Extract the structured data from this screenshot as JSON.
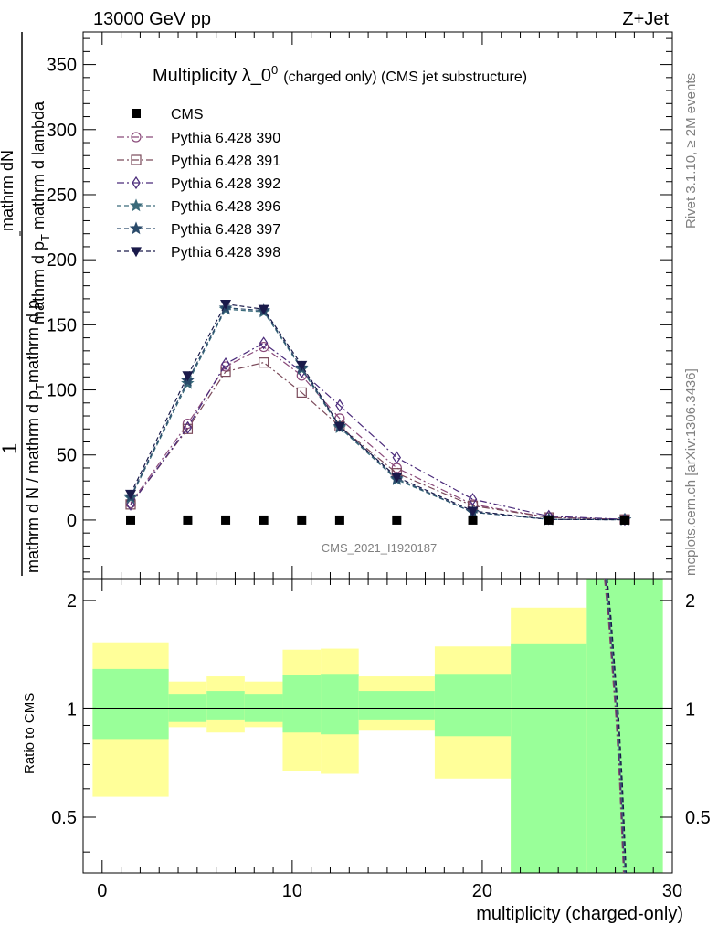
{
  "header": {
    "left": "13000 GeV pp",
    "right": "Z+Jet"
  },
  "side_labels": {
    "rivet": "Rivet 3.1.10, ≥ 2M events",
    "mcplots": "mcplots.cern.ch [arXiv:1306.3436]"
  },
  "watermark": "CMS_2021_I1920187",
  "colors": {
    "yellow_band": "#ffff99",
    "green_band": "#99ff99",
    "frame": "#000000"
  },
  "chart_data": [
    {
      "type": "line",
      "title_main": "Multiplicity λ_0",
      "title_sup": "0",
      "title_small": "(charged only) (CMS jet substructure)",
      "ylabel_parts": {
        "one": "1",
        "num_top": "mathrm dN",
        "num_mid": "mathrm d p",
        "num_sub": "T",
        "num_tail": " mathrm d lambda",
        "den_a": "mathrm d N / mathrm d p",
        "den_sub": "T",
        "den_b": "mathrm d p"
      },
      "xlim": [
        -1,
        30
      ],
      "ylim": [
        -45,
        375
      ],
      "yticks": [
        0,
        50,
        100,
        150,
        200,
        250,
        300,
        350
      ],
      "legend_position": "top-left",
      "data_series": {
        "name": "CMS",
        "x": [
          1.5,
          4.5,
          6.5,
          8.5,
          10.5,
          12.5,
          15.5,
          19.5,
          23.5,
          27.5
        ],
        "y": [
          0,
          0,
          0,
          0,
          0,
          0,
          0,
          0,
          0,
          0
        ]
      },
      "x": [
        1.5,
        4.5,
        6.5,
        8.5,
        10.5,
        12.5,
        15.5,
        19.5,
        23.5,
        27.5
      ],
      "series": [
        {
          "name": "Pythia 6.428 390",
          "marker": "circle",
          "dash": "8,3,2,3",
          "color": "#8a4a7a",
          "values": [
            13,
            74,
            118,
            133,
            111,
            78,
            40,
            12,
            2,
            0.5
          ]
        },
        {
          "name": "Pythia 6.428 391",
          "marker": "square",
          "dash": "8,3,2,3",
          "color": "#7a4a5a",
          "values": [
            12,
            70,
            114,
            121,
            98,
            72,
            36,
            11,
            2,
            0.5
          ]
        },
        {
          "name": "Pythia 6.428 392",
          "marker": "diamond",
          "dash": "8,3,2,3",
          "color": "#4a2a7a",
          "values": [
            12,
            71,
            120,
            136,
            114,
            88,
            48,
            16,
            3,
            0.5
          ]
        },
        {
          "name": "Pythia 6.428 396",
          "marker": "star",
          "dash": "5,3",
          "color": "#3a6a7a",
          "values": [
            17,
            105,
            162,
            160,
            116,
            71,
            31,
            6,
            0.5,
            0.2
          ]
        },
        {
          "name": "Pythia 6.428 397",
          "marker": "star",
          "dash": "5,3",
          "color": "#2a4a6a",
          "values": [
            18,
            107,
            163,
            161,
            117,
            72,
            32,
            6,
            0.5,
            0.2
          ]
        },
        {
          "name": "Pythia 6.428 398",
          "marker": "triangle-down",
          "dash": "5,3",
          "color": "#1a1a4a",
          "values": [
            20,
            111,
            166,
            162,
            119,
            72,
            33,
            7,
            0.5,
            0.2
          ]
        }
      ]
    },
    {
      "type": "line",
      "ylabel": "Ratio to CMS",
      "xlabel": "multiplicity (charged-only)",
      "xlim": [
        -1,
        30
      ],
      "ylim": [
        0.35,
        2.3
      ],
      "xticks": [
        0,
        10,
        20,
        30
      ],
      "yticks": [
        0.5,
        1,
        2
      ],
      "bins": [
        {
          "x0": -0.5,
          "x1": 3.5,
          "green": [
            0.82,
            1.29
          ],
          "yellow": [
            0.57,
            1.53
          ]
        },
        {
          "x0": 3.5,
          "x1": 5.5,
          "green": [
            0.92,
            1.1
          ],
          "yellow": [
            0.89,
            1.19
          ]
        },
        {
          "x0": 5.5,
          "x1": 7.5,
          "green": [
            0.93,
            1.12
          ],
          "yellow": [
            0.86,
            1.23
          ]
        },
        {
          "x0": 7.5,
          "x1": 9.5,
          "green": [
            0.92,
            1.1
          ],
          "yellow": [
            0.89,
            1.19
          ]
        },
        {
          "x0": 9.5,
          "x1": 11.5,
          "green": [
            0.86,
            1.24
          ],
          "yellow": [
            0.67,
            1.46
          ]
        },
        {
          "x0": 11.5,
          "x1": 13.5,
          "green": [
            0.85,
            1.25
          ],
          "yellow": [
            0.66,
            1.47
          ]
        },
        {
          "x0": 13.5,
          "x1": 17.5,
          "green": [
            0.93,
            1.12
          ],
          "yellow": [
            0.87,
            1.23
          ]
        },
        {
          "x0": 17.5,
          "x1": 21.5,
          "green": [
            0.84,
            1.25
          ],
          "yellow": [
            0.64,
            1.49
          ]
        },
        {
          "x0": 21.5,
          "x1": 25.5,
          "green": [
            0.35,
            1.52
          ],
          "yellow": [
            0.35,
            1.91
          ]
        },
        {
          "x0": 25.5,
          "x1": 29.5,
          "green": [
            0.35,
            2.3
          ],
          "yellow": [
            0.35,
            2.3
          ]
        }
      ],
      "ratio_curve": {
        "x": [
          26.5,
          26.7,
          26.9,
          27.1,
          27.3,
          27.5
        ],
        "y": [
          2.3,
          1.8,
          1.3,
          0.95,
          0.62,
          0.35
        ]
      }
    }
  ]
}
